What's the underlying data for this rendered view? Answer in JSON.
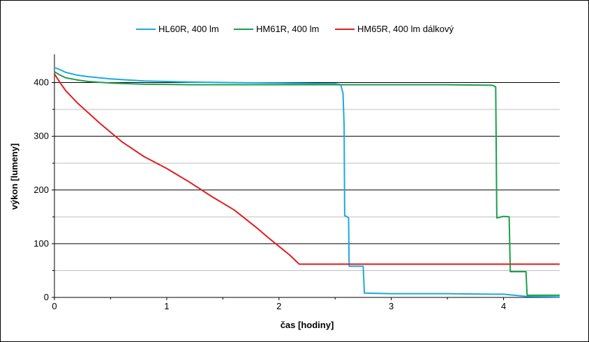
{
  "chart_data": {
    "type": "line",
    "title": "",
    "xlabel": "čas [hodiny]",
    "ylabel": "výkon [lumeny]",
    "xlim": [
      0,
      4.5
    ],
    "ylim": [
      0,
      450
    ],
    "x_ticks": [
      "0",
      "1",
      "2",
      "3",
      "4"
    ],
    "x_tick_values": [
      0,
      1,
      2,
      3,
      4
    ],
    "y_ticks": [
      "0",
      "100",
      "200",
      "300",
      "400"
    ],
    "y_tick_values": [
      0,
      100,
      200,
      300,
      400
    ],
    "grid": "horizontal",
    "legend_position": "top",
    "series": [
      {
        "name": "HL60R,  400 lm",
        "color": "#1ea8e0",
        "points": [
          [
            0,
            428
          ],
          [
            0.05,
            424
          ],
          [
            0.1,
            419
          ],
          [
            0.2,
            414
          ],
          [
            0.3,
            411
          ],
          [
            0.5,
            407
          ],
          [
            0.8,
            403
          ],
          [
            1.2,
            401
          ],
          [
            1.6,
            400
          ],
          [
            2.0,
            399
          ],
          [
            2.4,
            398
          ],
          [
            2.5,
            398
          ],
          [
            2.55,
            396
          ],
          [
            2.57,
            380
          ],
          [
            2.58,
            320
          ],
          [
            2.585,
            152
          ],
          [
            2.6,
            151
          ],
          [
            2.62,
            148
          ],
          [
            2.625,
            58
          ],
          [
            2.75,
            58
          ],
          [
            2.76,
            8
          ],
          [
            3.0,
            7
          ],
          [
            3.5,
            7
          ],
          [
            3.9,
            6
          ],
          [
            4.0,
            6
          ],
          [
            4.2,
            2
          ],
          [
            4.5,
            1
          ]
        ]
      },
      {
        "name": "HM61R,  400 lm",
        "color": "#1aa04a",
        "points": [
          [
            0,
            420
          ],
          [
            0.05,
            414
          ],
          [
            0.1,
            409
          ],
          [
            0.2,
            405
          ],
          [
            0.3,
            402
          ],
          [
            0.5,
            399
          ],
          [
            0.8,
            397
          ],
          [
            1.2,
            396
          ],
          [
            2.0,
            396
          ],
          [
            3.0,
            396
          ],
          [
            3.5,
            396
          ],
          [
            3.9,
            395
          ],
          [
            3.93,
            392
          ],
          [
            3.94,
            148
          ],
          [
            4.0,
            151
          ],
          [
            4.05,
            150
          ],
          [
            4.06,
            48
          ],
          [
            4.2,
            48
          ],
          [
            4.21,
            4
          ],
          [
            4.5,
            4
          ]
        ]
      },
      {
        "name": "HM65R,  400 lm dálkový",
        "color": "#e01e1e",
        "points": [
          [
            0,
            416
          ],
          [
            0.05,
            400
          ],
          [
            0.1,
            385
          ],
          [
            0.2,
            363
          ],
          [
            0.4,
            325
          ],
          [
            0.6,
            290
          ],
          [
            0.8,
            262
          ],
          [
            1.0,
            240
          ],
          [
            1.2,
            215
          ],
          [
            1.4,
            188
          ],
          [
            1.6,
            163
          ],
          [
            1.8,
            130
          ],
          [
            1.9,
            112
          ],
          [
            2.0,
            95
          ],
          [
            2.1,
            78
          ],
          [
            2.15,
            68
          ],
          [
            2.18,
            62
          ],
          [
            2.5,
            62
          ],
          [
            3.0,
            62
          ],
          [
            3.5,
            62
          ],
          [
            4.0,
            62
          ],
          [
            4.5,
            62
          ]
        ]
      }
    ]
  }
}
